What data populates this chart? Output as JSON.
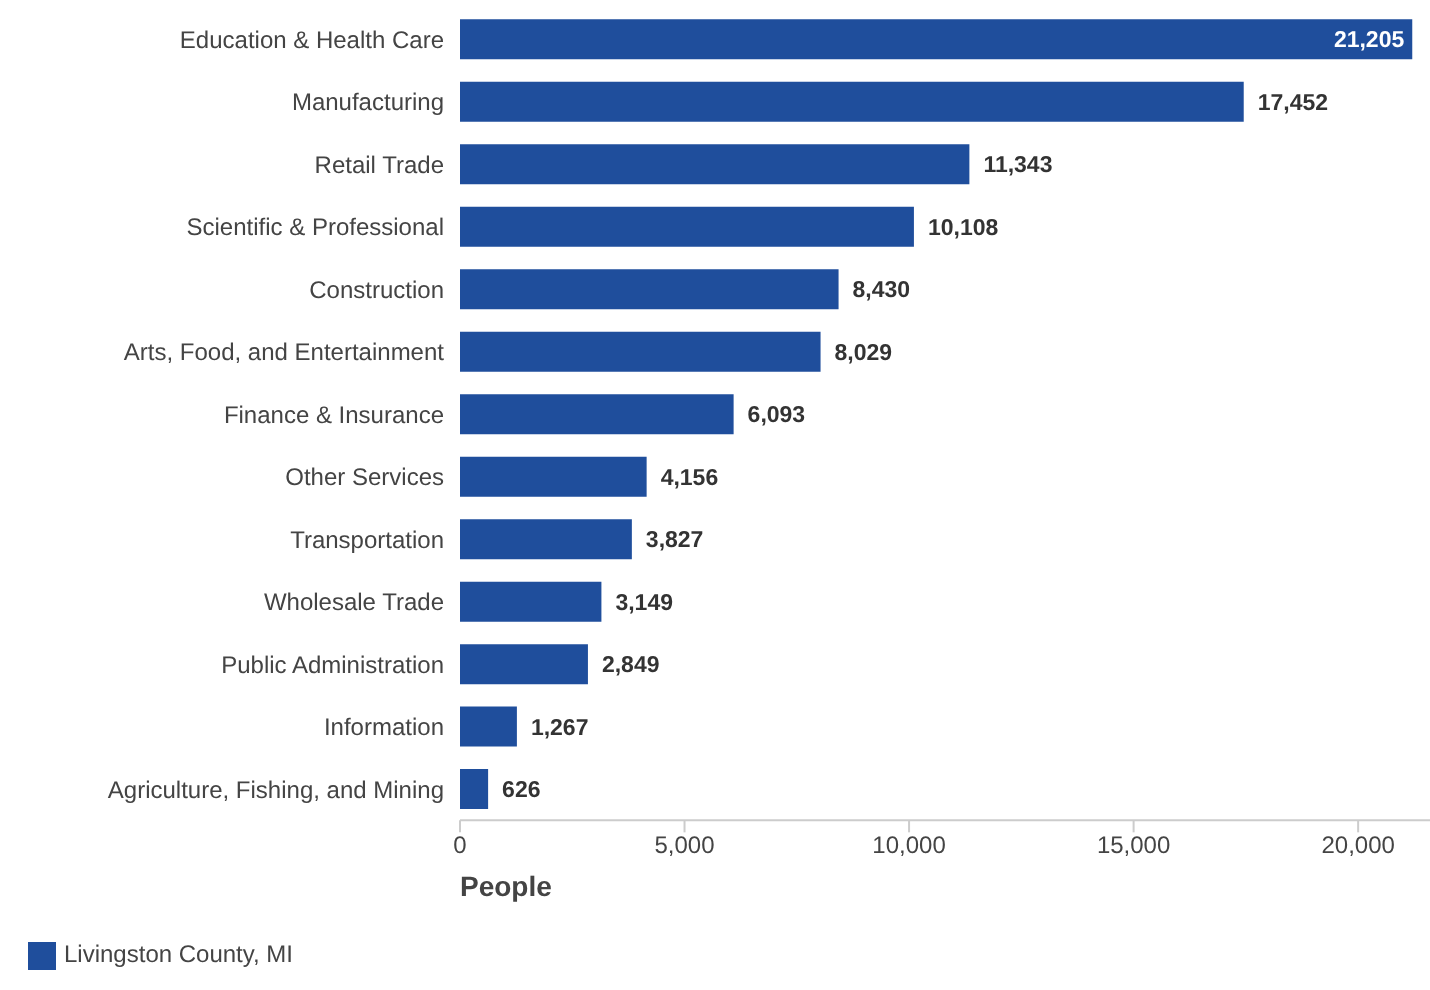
{
  "chart_data": {
    "type": "bar",
    "orientation": "horizontal",
    "xlabel": "People",
    "categories": [
      "Education & Health Care",
      "Manufacturing",
      "Retail Trade",
      "Scientific & Professional",
      "Construction",
      "Arts, Food, and Entertainment",
      "Finance & Insurance",
      "Other Services",
      "Transportation",
      "Wholesale Trade",
      "Public Administration",
      "Information",
      "Agriculture, Fishing, and Mining"
    ],
    "series": [
      {
        "name": "Livingston County, MI",
        "color": "#1f4e9c",
        "values": [
          21205,
          17452,
          11343,
          10108,
          8430,
          8029,
          6093,
          4156,
          3827,
          3149,
          2849,
          1267,
          626
        ],
        "value_labels": [
          "21,205",
          "17,452",
          "11,343",
          "10,108",
          "8,430",
          "8,029",
          "6,093",
          "4,156",
          "3,827",
          "3,149",
          "2,849",
          "1,267",
          "626"
        ]
      }
    ],
    "xlim": [
      0,
      21600
    ],
    "xticks": [
      0,
      {
        "value": 5000,
        "label": "5,000"
      },
      {
        "value": 10000,
        "label": "10,000"
      },
      {
        "value": 15000,
        "label": "15,000"
      },
      {
        "value": 20000,
        "label": "20,000"
      }
    ],
    "grid": false,
    "legend": "bottom left"
  }
}
